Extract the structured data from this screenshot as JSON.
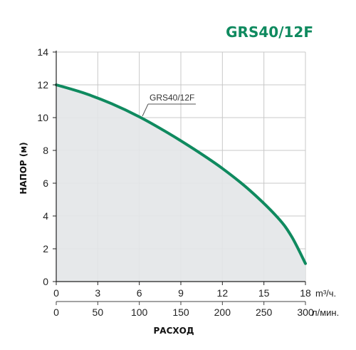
{
  "chart_data": {
    "type": "area",
    "title": "GRS40/12F",
    "xlabel": "РАСХОД",
    "ylabel": "НАПОР (м)",
    "x_unit": "m³/ч.",
    "x2_unit": "л/мин.",
    "xlim": [
      0,
      18
    ],
    "ylim": [
      0,
      14
    ],
    "x_ticks": [
      "0",
      "3",
      "6",
      "9",
      "12",
      "15",
      "18"
    ],
    "x2_ticks": [
      "0",
      "50",
      "100",
      "150",
      "200",
      "250",
      "300"
    ],
    "y_ticks": [
      "0",
      "2",
      "4",
      "6",
      "8",
      "10",
      "12",
      "14"
    ],
    "grid": true,
    "series": [
      {
        "name": "GRS40/12F",
        "color": "#0f8a5f",
        "fill": "#e3e5e8",
        "x": [
          0,
          2,
          4,
          6,
          8,
          10,
          12,
          14,
          16,
          17,
          18
        ],
        "y": [
          12.0,
          11.5,
          10.85,
          10.05,
          9.1,
          8.05,
          6.9,
          5.55,
          3.9,
          2.75,
          1.1
        ]
      }
    ],
    "annotation": "GRS40/12F"
  }
}
